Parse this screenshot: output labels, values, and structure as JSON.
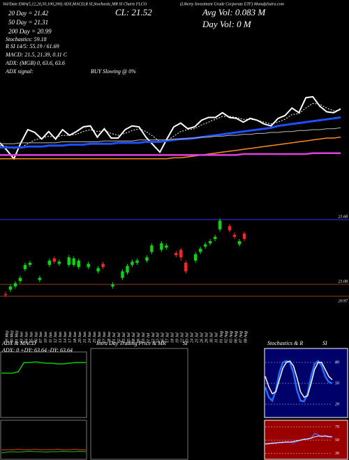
{
  "header": {
    "ema_header": "Vol/Date EMA(5,12,20,50,100,200) ADX,MACD,R SI,Stochastic,MR SI Charts FLCO",
    "company": "(Liberty Investment Grade Corporate ETF) MunafaSutra.com",
    "ema20": "20 Day = 21.42",
    "ema50": "50 Day = 21.31",
    "ema200": "200 Day = 20.99",
    "stochastics": "Stochastics: 59.18",
    "rsi": "R SI 14/5: 55.19 / 61.69",
    "macd": "MACD: 21.5, 21.39, 0.11 C",
    "adx": "ADX: (MGB) 0, 63.6, 63.6",
    "adx_signal": "ADX signal:",
    "signal": "BUY Slowing @ 0%",
    "close": "CL: 21.52",
    "avg_vol": "Avg Vol: 0.083 M",
    "day_vol": "Day Vol: 0  M"
  },
  "chart_data": [
    {
      "type": "line",
      "ylim": [
        20.37,
        22.67
      ],
      "series": [
        {
          "color": "#ffffff",
          "values": [
            21.15,
            21.07,
            20.98,
            21.15,
            21.29,
            21.26,
            21.19,
            21.27,
            21.19,
            21.29,
            21.23,
            21.27,
            21.32,
            21.33,
            21.21,
            21.3,
            21.2,
            21.2,
            21.29,
            21.33,
            21.32,
            21.21,
            21.13,
            21.05,
            21.19,
            21.32,
            21.36,
            21.3,
            21.32,
            21.39,
            21.42,
            21.42,
            21.47,
            21.42,
            21.41,
            21.37,
            21.41,
            21.39,
            21.35,
            21.33,
            21.41,
            21.44,
            21.52,
            21.47,
            21.63,
            21.64,
            21.54,
            21.48,
            21.47,
            21.51
          ]
        },
        {
          "color": "#ffffff",
          "dashed": true,
          "values": [
            21.12,
            21.11,
            21.09,
            21.1,
            21.14,
            21.18,
            21.2,
            21.22,
            21.21,
            21.23,
            21.23,
            21.24,
            21.27,
            21.29,
            21.27,
            21.28,
            21.25,
            21.23,
            21.25,
            21.28,
            21.3,
            21.27,
            21.22,
            21.16,
            21.17,
            21.22,
            21.27,
            21.29,
            21.3,
            21.34,
            21.37,
            21.4,
            21.43,
            21.43,
            21.42,
            21.4,
            21.4,
            21.39,
            21.37,
            21.35,
            21.37,
            21.4,
            21.45,
            21.46,
            21.52,
            21.57,
            21.56,
            21.52,
            21.49,
            21.5
          ]
        },
        {
          "color": "#1f4fff",
          "values": [
            21.1,
            21.1,
            21.1,
            21.1,
            21.11,
            21.11,
            21.11,
            21.12,
            21.12,
            21.12,
            21.13,
            21.13,
            21.13,
            21.14,
            21.14,
            21.14,
            21.14,
            21.15,
            21.15,
            21.15,
            21.15,
            21.16,
            21.16,
            21.16,
            21.17,
            21.18,
            21.19,
            21.19,
            21.2,
            21.21,
            21.22,
            21.23,
            21.24,
            21.25,
            21.26,
            21.27,
            21.28,
            21.29,
            21.3,
            21.31,
            21.33,
            21.34,
            21.35,
            21.36,
            21.37,
            21.38,
            21.39,
            21.4,
            21.41,
            21.42
          ]
        },
        {
          "color": "#bbbbbb",
          "values": [
            21.14,
            21.14,
            21.14,
            21.15,
            21.15,
            21.15,
            21.15,
            21.15,
            21.15,
            21.16,
            21.16,
            21.16,
            21.16,
            21.16,
            21.16,
            21.17,
            21.17,
            21.17,
            21.17,
            21.17,
            21.18,
            21.18,
            21.18,
            21.18,
            21.18,
            21.19,
            21.19,
            21.2,
            21.2,
            21.21,
            21.21,
            21.22,
            21.22,
            21.23,
            21.23,
            21.24,
            21.24,
            21.25,
            21.25,
            21.26,
            21.26,
            21.27,
            21.27,
            21.28,
            21.28,
            21.29,
            21.29,
            21.3,
            21.3,
            21.31
          ]
        },
        {
          "color": "#ff8c1a",
          "values": [
            20.98,
            20.98,
            20.98,
            20.98,
            20.98,
            20.98,
            20.98,
            20.98,
            20.98,
            20.98,
            20.98,
            20.98,
            20.98,
            20.98,
            20.98,
            20.98,
            20.98,
            20.98,
            20.98,
            20.98,
            20.98,
            20.98,
            20.98,
            20.98,
            20.98,
            20.99,
            20.99,
            21.0,
            21.01,
            21.02,
            21.03,
            21.04,
            21.05,
            21.06,
            21.07,
            21.08,
            21.09,
            21.1,
            21.11,
            21.12,
            21.13,
            21.14,
            21.15,
            21.16,
            21.17,
            21.18,
            21.19,
            21.2,
            21.2,
            21.21
          ]
        },
        {
          "color": "#e040e0",
          "values": [
            21.02,
            21.02,
            21.02,
            21.02,
            21.02,
            21.02,
            21.02,
            21.02,
            21.02,
            21.02,
            21.02,
            21.02,
            21.02,
            21.02,
            21.02,
            21.02,
            21.02,
            21.02,
            21.02,
            21.02,
            21.02,
            21.02,
            21.02,
            21.02,
            21.02,
            21.02,
            21.02,
            21.02,
            21.02,
            21.02,
            21.02,
            21.02,
            21.02,
            21.02,
            21.02,
            21.03,
            21.03,
            21.03,
            21.03,
            21.03,
            21.03,
            21.03,
            21.03,
            21.03,
            21.03,
            21.04,
            21.04,
            21.04,
            21.04,
            21.04
          ]
        }
      ]
    },
    {
      "type": "candlestick",
      "ylim": [
        20.873,
        21.745
      ],
      "yticks": [
        21.68,
        21.08,
        20.97
      ],
      "ytick_colors": [
        "#3333ff",
        "#8b4513",
        "#8b4513"
      ],
      "up_color": "#00dd00",
      "down_color": "#ff2222",
      "categories": [
        "29 May",
        "30 May",
        "31 May",
        "03 Jun",
        "04 Jun",
        "05 Jun",
        "06 Jun",
        "07 Jun",
        "10 Jun",
        "11 Jun",
        "12 Jun",
        "13 Jun",
        "14 Jun",
        "17 Jun",
        "18 Jun",
        "20 Jun",
        "21 Jun",
        "24 Jun",
        "25 Jun",
        "26 Jun",
        "27 Jun",
        "28 Jun",
        "01 Jul",
        "02 Jul",
        "03 Jul",
        "05 Jul",
        "08 Jul",
        "09 Jul",
        "10 Jul",
        "11 Jul",
        "12 Jul",
        "15 Jul",
        "16 Jul",
        "17 Jul",
        "18 Jul",
        "19 Jul",
        "22 Jul",
        "23 Jul",
        "24 Jul",
        "25 Jul",
        "26 Jul",
        "29 Jul",
        "30 Jul",
        "31 Jul",
        "01 Aug",
        "02 Aug",
        "05 Aug",
        "06 Aug",
        "07 Aug",
        "08 Aug"
      ],
      "open": [
        20.99,
        21.03,
        21.06,
        21.11,
        21.22,
        21.26,
        null,
        21.12,
        null,
        21.26,
        21.32,
        21.27,
        null,
        21.26,
        21.26,
        21.24,
        null,
        21.24,
        null,
        21.2,
        21.27,
        null,
        21.06,
        null,
        21.14,
        21.19,
        21.26,
        21.28,
        null,
        21.3,
        21.38,
        null,
        21.4,
        21.42,
        null,
        21.37,
        21.4,
        21.28,
        null,
        21.3,
        21.38,
        21.43,
        21.46,
        21.5,
        21.59,
        null,
        21.62,
        21.54,
        21.45,
        21.55
      ],
      "high": [
        21.01,
        21.08,
        21.11,
        21.16,
        21.28,
        21.3,
        null,
        21.16,
        null,
        21.32,
        21.34,
        21.31,
        null,
        21.35,
        21.34,
        21.32,
        null,
        21.29,
        null,
        21.25,
        21.29,
        null,
        21.1,
        null,
        21.22,
        21.27,
        21.31,
        21.32,
        null,
        21.35,
        21.46,
        null,
        21.48,
        21.46,
        null,
        21.39,
        21.42,
        21.3,
        null,
        21.38,
        21.43,
        21.47,
        21.5,
        21.54,
        21.69,
        null,
        21.64,
        21.56,
        21.5,
        21.57
      ],
      "low": [
        20.96,
        21.01,
        21.04,
        21.09,
        21.2,
        21.24,
        null,
        21.1,
        null,
        21.24,
        21.27,
        21.25,
        null,
        21.24,
        21.24,
        21.22,
        null,
        21.22,
        null,
        21.18,
        21.22,
        null,
        21.04,
        null,
        21.12,
        21.17,
        21.24,
        21.26,
        null,
        21.28,
        21.36,
        null,
        21.38,
        21.4,
        null,
        21.33,
        21.3,
        21.18,
        null,
        21.28,
        21.36,
        21.41,
        21.44,
        21.48,
        21.57,
        null,
        21.56,
        21.5,
        21.43,
        21.48
      ],
      "close": [
        20.98,
        21.06,
        21.09,
        21.14,
        21.26,
        21.28,
        null,
        21.14,
        null,
        21.3,
        21.29,
        21.29,
        null,
        21.33,
        21.32,
        21.3,
        null,
        21.27,
        null,
        21.23,
        21.24,
        null,
        21.08,
        null,
        21.2,
        21.25,
        21.29,
        21.3,
        null,
        21.33,
        21.44,
        null,
        21.46,
        21.44,
        null,
        21.35,
        21.33,
        21.2,
        null,
        21.36,
        21.41,
        21.45,
        21.48,
        21.52,
        21.67,
        null,
        21.58,
        21.52,
        21.48,
        21.5
      ]
    },
    {
      "type": "line",
      "title": "ADX  & MACD",
      "subtitle": "ADX: 0  +DY: 63.64  -DY: 63.64",
      "ylim": [
        0,
        100
      ],
      "series": [
        {
          "color": "#00cc00",
          "values": [
            68,
            68,
            68,
            70,
            84,
            84,
            85,
            84,
            83,
            83,
            82,
            82,
            83,
            84,
            84,
            84
          ]
        }
      ]
    },
    {
      "type": "line",
      "ylim": [
        0,
        1
      ],
      "series": [
        {
          "color": "#ff3333",
          "values": [
            0.25,
            0.26,
            0.26,
            0.27,
            0.26,
            0.26,
            0.27,
            0.26,
            0.26,
            0.26,
            0.27,
            0.26,
            0.26,
            0.27,
            0.26,
            0.26
          ]
        },
        {
          "color": "#00cc00",
          "values": [
            0.18,
            0.2,
            0.21,
            0.2,
            0.21,
            0.22,
            0.21,
            0.21,
            0.2,
            0.21,
            0.21,
            0.22,
            0.21,
            0.21,
            0.22,
            0.21
          ]
        }
      ]
    },
    {
      "type": "line",
      "title": "Intra Day Trading Price  & MR",
      "subtitle": "SI",
      "series": []
    },
    {
      "type": "line",
      "title": "Stochastics & R",
      "subtitle": "SI",
      "ylim": [
        0,
        100
      ],
      "yticks": [
        80,
        50,
        20
      ],
      "series": [
        {
          "color": "#1f6fff",
          "values": [
            45,
            30,
            25,
            40,
            65,
            80,
            82,
            80,
            65,
            40,
            25,
            24,
            35,
            60,
            78,
            82,
            75,
            60,
            52,
            50
          ]
        },
        {
          "color": "#ffffff",
          "values": [
            60,
            45,
            35,
            38,
            55,
            72,
            80,
            82,
            75,
            58,
            38,
            30,
            32,
            50,
            70,
            80,
            80,
            70,
            60,
            55
          ]
        }
      ]
    },
    {
      "type": "line",
      "ylim": [
        20,
        80
      ],
      "yticks": [
        70,
        50,
        30
      ],
      "series": [
        {
          "color": "#3f6fff",
          "values": [
            45,
            44,
            46,
            45,
            47,
            46,
            48,
            47,
            46,
            48,
            50,
            52,
            51,
            53,
            60,
            58,
            55,
            57,
            56,
            55
          ]
        },
        {
          "color": "#ffffff",
          "values": [
            44,
            45,
            45,
            46,
            46,
            47,
            47,
            47,
            48,
            49,
            50,
            51,
            52,
            53,
            55,
            56,
            56,
            56,
            55,
            55
          ]
        }
      ]
    }
  ]
}
